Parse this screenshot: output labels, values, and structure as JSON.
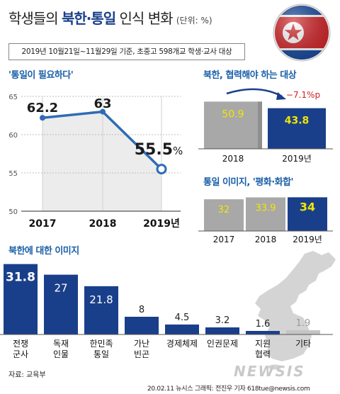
{
  "header": {
    "title_pre": "학생들의",
    "title_bold": "북한·통일",
    "title_post": "인식 변화",
    "unit": "(단위: %)",
    "subtitle": "2019년 10월21일~11월29일 기준, 초중고 598개교 학생·교사 대상"
  },
  "chart_data": [
    {
      "type": "line",
      "title": "'통일이 필요하다'",
      "x": [
        "2017",
        "2018",
        "2019년"
      ],
      "values": [
        62.2,
        63,
        55.5
      ],
      "value_labels": [
        "62.2",
        "63",
        "55.5"
      ],
      "unit_suffix": "%",
      "ylim": [
        50,
        65
      ],
      "yticks": [
        "65",
        "60",
        "55",
        "50"
      ],
      "grid": true
    },
    {
      "type": "bar",
      "title": "북한, 협력해야 하는 대상",
      "categories": [
        "2018",
        "2019년"
      ],
      "values": [
        50.9,
        43.8
      ],
      "value_labels": [
        "50.9",
        "43.8"
      ],
      "annotation": "−7.1%p"
    },
    {
      "type": "bar",
      "title": "통일 이미지, '평화·화합'",
      "categories": [
        "2017",
        "2018",
        "2019년"
      ],
      "values": [
        32,
        33.9,
        34
      ],
      "value_labels": [
        "32",
        "33.9",
        "34"
      ]
    },
    {
      "type": "bar",
      "title": "북한에 대한 이미지",
      "categories": [
        "전쟁\n군사",
        "독재\n인물",
        "한민족\n통일",
        "가난\n빈곤",
        "경제체제",
        "인권문제",
        "지원\n협력",
        "기타"
      ],
      "values": [
        31.8,
        27,
        21.8,
        8,
        4.5,
        3.2,
        1.6,
        1.9
      ],
      "value_labels": [
        "31.8",
        "27",
        "21.8",
        "8",
        "4.5",
        "3.2",
        "1.6",
        "1.9"
      ]
    }
  ],
  "colors": {
    "navy": "#1a3f8a",
    "gray_bar": "#a8a8a8",
    "yellow_label": "#f2e600",
    "red": "#cf2127",
    "line_blue": "#2f6cb4",
    "section_blue": "#1a5fa8"
  },
  "footer": {
    "source": "자료: 교육부",
    "credit": "20.02.11 뉴시스 그래픽: 전진우 기자 618tue@newsis.com",
    "logo_text": "NEWSIS"
  }
}
